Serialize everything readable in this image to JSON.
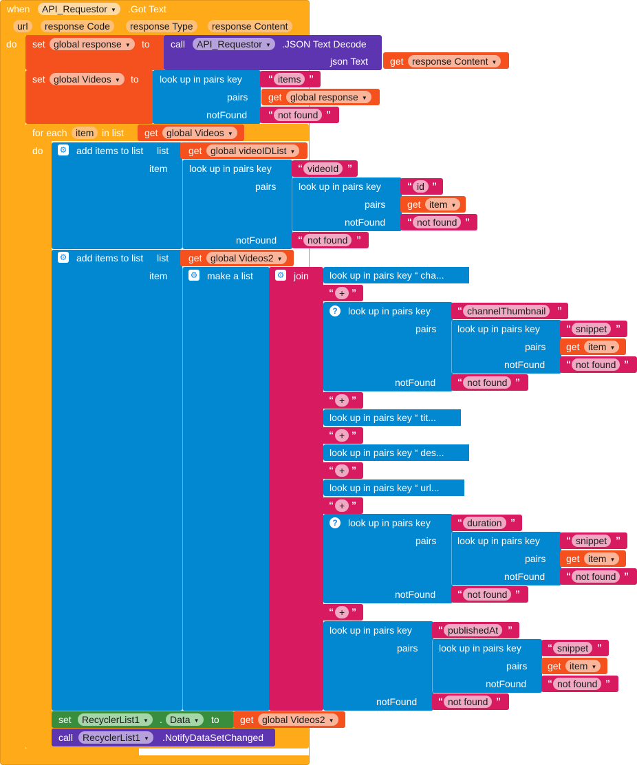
{
  "event": {
    "when": "when",
    "component": "API_Requestor",
    "event_name": ".Got Text",
    "params": [
      "url",
      "response Code",
      "response Type",
      "response Content"
    ],
    "do": "do"
  },
  "words": {
    "set": "set",
    "to": "to",
    "call": "call",
    "get": "get",
    "lookup": "look up in pairs  key",
    "pairs": "pairs",
    "notFound": "notFound",
    "for_each": "for each",
    "in_list": "in list",
    "do": "do",
    "add_items": "add items to list",
    "list": "list",
    "item": "item",
    "make_list": "make a list",
    "join": "join",
    "json_text": "json Text",
    "plus": "+",
    "lq": "“",
    "rq": "”"
  },
  "vars": {
    "global_response": "global response",
    "global_videos": "global Videos",
    "global_videoIDList": "global videoIDList",
    "global_videos2": "global Videos2",
    "item": "item",
    "response_content": "response Content"
  },
  "call_decode": {
    "component": "API_Requestor",
    "method": ".JSON Text Decode"
  },
  "strings": {
    "items": "items",
    "not_found": "not found",
    "videoId": "videoId",
    "id": "id",
    "channelThumbnail": "channelThumbnail",
    "snippet": "snippet",
    "duration": "duration",
    "publishedAt": "publishedAt"
  },
  "collapsed": {
    "c1": "look up in pairs  key “ cha...",
    "c2": "look up in pairs  key “ tit...",
    "c3": "look up in pairs  key “ des...",
    "c4": "look up in pairs  key “ url..."
  },
  "set_recycler": {
    "component": "RecyclerList1",
    "dot": ".",
    "property": "Data"
  },
  "call_recycler": {
    "component": "RecyclerList1",
    "method": ".NotifyDataSetChanged"
  },
  "colors": {
    "control": "#FFAB19",
    "variable": "#F4511E",
    "procedure": "#5E35B1",
    "dictionary": "#0288D1",
    "text": "#D81B60",
    "list": "#0288D1",
    "component": "#388E3C"
  }
}
